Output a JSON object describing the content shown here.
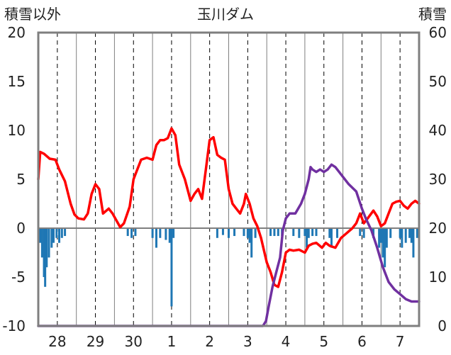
{
  "chart_data": {
    "type": "line",
    "title": "玉川ダム",
    "left_axis_label": "積雪以外",
    "right_axis_label": "積雪",
    "x_tick_labels": [
      "28",
      "29",
      "30",
      "1",
      "2",
      "3",
      "4",
      "5",
      "6",
      "7"
    ],
    "x_range": [
      27.5,
      37.5
    ],
    "y_left": {
      "min": -10,
      "max": 20,
      "ticks": [
        -10,
        -5,
        0,
        5,
        10,
        15,
        20
      ]
    },
    "y_right": {
      "min": 0,
      "max": 60,
      "ticks": [
        0,
        10,
        20,
        30,
        40,
        50,
        60
      ]
    },
    "grid": "vertical dashed lines at each day",
    "series": [
      {
        "axis": "left",
        "color": "#ff0000",
        "points": [
          [
            27.5,
            5.0
          ],
          [
            27.55,
            7.8
          ],
          [
            27.65,
            7.6
          ],
          [
            27.8,
            7.1
          ],
          [
            27.95,
            7.0
          ],
          [
            28.05,
            6.0
          ],
          [
            28.2,
            4.8
          ],
          [
            28.35,
            2.5
          ],
          [
            28.45,
            1.4
          ],
          [
            28.55,
            1.0
          ],
          [
            28.7,
            0.9
          ],
          [
            28.8,
            1.5
          ],
          [
            28.9,
            3.5
          ],
          [
            29.0,
            4.5
          ],
          [
            29.1,
            4.0
          ],
          [
            29.2,
            1.5
          ],
          [
            29.35,
            2.0
          ],
          [
            29.45,
            1.5
          ],
          [
            29.55,
            0.8
          ],
          [
            29.65,
            0.1
          ],
          [
            29.75,
            0.5
          ],
          [
            29.9,
            2.2
          ],
          [
            30.0,
            5.0
          ],
          [
            30.1,
            6.0
          ],
          [
            30.2,
            7.0
          ],
          [
            30.35,
            7.2
          ],
          [
            30.5,
            7.0
          ],
          [
            30.6,
            8.5
          ],
          [
            30.7,
            9.0
          ],
          [
            30.8,
            9.0
          ],
          [
            30.9,
            9.2
          ],
          [
            31.0,
            10.2
          ],
          [
            31.1,
            9.5
          ],
          [
            31.2,
            6.5
          ],
          [
            31.35,
            5.0
          ],
          [
            31.5,
            2.8
          ],
          [
            31.6,
            3.5
          ],
          [
            31.7,
            4.0
          ],
          [
            31.8,
            3.0
          ],
          [
            31.9,
            6.0
          ],
          [
            32.0,
            9.0
          ],
          [
            32.1,
            9.3
          ],
          [
            32.2,
            7.5
          ],
          [
            32.3,
            7.2
          ],
          [
            32.4,
            7.0
          ],
          [
            32.5,
            4.0
          ],
          [
            32.6,
            2.5
          ],
          [
            32.7,
            2.0
          ],
          [
            32.8,
            1.5
          ],
          [
            32.9,
            2.5
          ],
          [
            32.95,
            3.5
          ],
          [
            33.05,
            2.5
          ],
          [
            33.15,
            1.0
          ],
          [
            33.25,
            0.2
          ],
          [
            33.35,
            -1.0
          ],
          [
            33.5,
            -3.5
          ],
          [
            33.6,
            -4.5
          ],
          [
            33.7,
            -5.8
          ],
          [
            33.8,
            -6.0
          ],
          [
            33.9,
            -4.5
          ],
          [
            34.0,
            -2.5
          ],
          [
            34.1,
            -2.2
          ],
          [
            34.2,
            -2.3
          ],
          [
            34.35,
            -2.2
          ],
          [
            34.5,
            -2.5
          ],
          [
            34.6,
            -1.8
          ],
          [
            34.7,
            -1.6
          ],
          [
            34.8,
            -1.5
          ],
          [
            34.95,
            -2.0
          ],
          [
            35.05,
            -1.5
          ],
          [
            35.15,
            -1.8
          ],
          [
            35.3,
            -2.0
          ],
          [
            35.45,
            -1.0
          ],
          [
            35.6,
            -0.5
          ],
          [
            35.75,
            0.0
          ],
          [
            35.85,
            0.5
          ],
          [
            35.95,
            1.5
          ],
          [
            36.05,
            0.5
          ],
          [
            36.15,
            1.0
          ],
          [
            36.3,
            1.8
          ],
          [
            36.4,
            1.2
          ],
          [
            36.5,
            0.2
          ],
          [
            36.6,
            0.5
          ],
          [
            36.7,
            1.5
          ],
          [
            36.8,
            2.5
          ],
          [
            36.9,
            2.7
          ],
          [
            37.0,
            2.8
          ],
          [
            37.1,
            2.3
          ],
          [
            37.2,
            2.0
          ],
          [
            37.3,
            2.5
          ],
          [
            37.4,
            2.8
          ],
          [
            37.5,
            2.5
          ]
        ]
      },
      {
        "axis": "right",
        "color": "#7030a0",
        "points": [
          [
            27.5,
            0.0
          ],
          [
            33.4,
            0.0
          ],
          [
            33.48,
            1.0
          ],
          [
            33.55,
            4.0
          ],
          [
            33.65,
            8.0
          ],
          [
            33.75,
            11.0
          ],
          [
            33.85,
            14.0
          ],
          [
            33.92,
            19.5
          ],
          [
            34.0,
            22.0
          ],
          [
            34.1,
            23.0
          ],
          [
            34.25,
            23.0
          ],
          [
            34.4,
            25.0
          ],
          [
            34.5,
            27.0
          ],
          [
            34.6,
            30.0
          ],
          [
            34.65,
            32.5
          ],
          [
            34.7,
            32.0
          ],
          [
            34.8,
            31.5
          ],
          [
            34.9,
            32.0
          ],
          [
            35.0,
            31.5
          ],
          [
            35.1,
            32.0
          ],
          [
            35.2,
            33.0
          ],
          [
            35.3,
            32.5
          ],
          [
            35.4,
            31.5
          ],
          [
            35.5,
            30.5
          ],
          [
            35.65,
            29.0
          ],
          [
            35.85,
            27.5
          ],
          [
            36.0,
            24.0
          ],
          [
            36.1,
            22.0
          ],
          [
            36.25,
            19.5
          ],
          [
            36.4,
            16.0
          ],
          [
            36.55,
            12.0
          ],
          [
            36.7,
            9.0
          ],
          [
            36.85,
            7.5
          ],
          [
            37.0,
            6.5
          ],
          [
            37.15,
            5.5
          ],
          [
            37.3,
            5.0
          ],
          [
            37.5,
            5.0
          ]
        ]
      },
      {
        "axis": "left",
        "color": "#1f77b4",
        "type": "bar",
        "points": [
          [
            27.55,
            -1.5
          ],
          [
            27.6,
            -3.0
          ],
          [
            27.65,
            -5.0
          ],
          [
            27.68,
            -6.0
          ],
          [
            27.72,
            -4.0
          ],
          [
            27.78,
            -3.0
          ],
          [
            27.85,
            -2.0
          ],
          [
            27.9,
            -1.5
          ],
          [
            27.98,
            -1.0
          ],
          [
            28.05,
            -1.5
          ],
          [
            28.12,
            -1.0
          ],
          [
            28.2,
            -0.8
          ],
          [
            29.85,
            -0.8
          ],
          [
            29.95,
            -1.0
          ],
          [
            30.05,
            -0.8
          ],
          [
            30.5,
            -1.0
          ],
          [
            30.6,
            -2.0
          ],
          [
            30.7,
            -1.0
          ],
          [
            30.85,
            -1.2
          ],
          [
            30.95,
            -1.5
          ],
          [
            31.0,
            -8.0
          ],
          [
            31.05,
            -1.0
          ],
          [
            32.2,
            -1.0
          ],
          [
            32.35,
            -0.7
          ],
          [
            32.5,
            -1.0
          ],
          [
            32.65,
            -0.8
          ],
          [
            32.9,
            -0.8
          ],
          [
            33.0,
            -1.0
          ],
          [
            33.05,
            -1.5
          ],
          [
            33.1,
            -3.0
          ],
          [
            33.2,
            -1.0
          ],
          [
            33.6,
            -0.8
          ],
          [
            33.7,
            -0.8
          ],
          [
            33.8,
            -0.8
          ],
          [
            33.9,
            -0.8
          ],
          [
            34.2,
            -0.8
          ],
          [
            34.35,
            -1.0
          ],
          [
            34.5,
            -0.8
          ],
          [
            34.55,
            -2.0
          ],
          [
            34.6,
            -1.0
          ],
          [
            34.7,
            -0.8
          ],
          [
            34.8,
            -0.8
          ],
          [
            35.15,
            -1.0
          ],
          [
            35.2,
            -2.0
          ],
          [
            35.35,
            -1.0
          ],
          [
            35.95,
            -0.8
          ],
          [
            36.05,
            -1.0
          ],
          [
            36.3,
            -1.0
          ],
          [
            36.45,
            -2.0
          ],
          [
            36.5,
            -1.5
          ],
          [
            36.55,
            -3.0
          ],
          [
            36.6,
            -4.0
          ],
          [
            36.65,
            -2.0
          ],
          [
            36.75,
            -1.0
          ],
          [
            37.0,
            -1.0
          ],
          [
            37.05,
            -2.0
          ],
          [
            37.15,
            -1.5
          ],
          [
            37.25,
            -1.0
          ],
          [
            37.3,
            -1.5
          ],
          [
            37.35,
            -3.0
          ],
          [
            37.45,
            -1.0
          ]
        ]
      }
    ]
  }
}
